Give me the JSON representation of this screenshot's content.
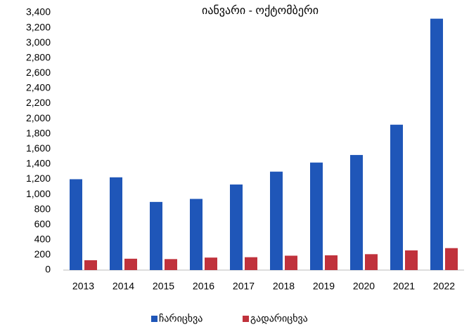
{
  "chart_data": {
    "type": "bar",
    "title": "იანვარი - ოქტომბერი",
    "categories": [
      "2013",
      "2014",
      "2015",
      "2016",
      "2017",
      "2018",
      "2019",
      "2020",
      "2021",
      "2022"
    ],
    "series": [
      {
        "name": "ჩარიცხვა",
        "color": "#1f56b8",
        "values": [
          1200,
          1225,
          900,
          940,
          1130,
          1300,
          1420,
          1520,
          1920,
          3320
        ]
      },
      {
        "name": "გადარიცხვა",
        "color": "#c0323c",
        "values": [
          130,
          150,
          145,
          165,
          170,
          190,
          195,
          210,
          260,
          290
        ]
      }
    ],
    "ylim": [
      0,
      3400
    ],
    "yticks": [
      0,
      200,
      400,
      600,
      800,
      {
        "value": 1000,
        "label": "1,000"
      },
      {
        "value": 1200,
        "label": "1,200"
      },
      {
        "value": 1400,
        "label": "1,400"
      },
      {
        "value": 1600,
        "label": "1,600"
      },
      {
        "value": 1800,
        "label": "1,800"
      },
      {
        "value": 2000,
        "label": "2,000"
      },
      {
        "value": 2200,
        "label": "2,200"
      },
      {
        "value": 2400,
        "label": "2,400"
      },
      {
        "value": 2600,
        "label": "2,600"
      },
      {
        "value": 2800,
        "label": "2,800"
      },
      {
        "value": 3000,
        "label": "3,000"
      },
      {
        "value": 3200,
        "label": "3,200"
      },
      {
        "value": 3400,
        "label": "3,400"
      }
    ],
    "grid": false,
    "legend": "bottom"
  }
}
